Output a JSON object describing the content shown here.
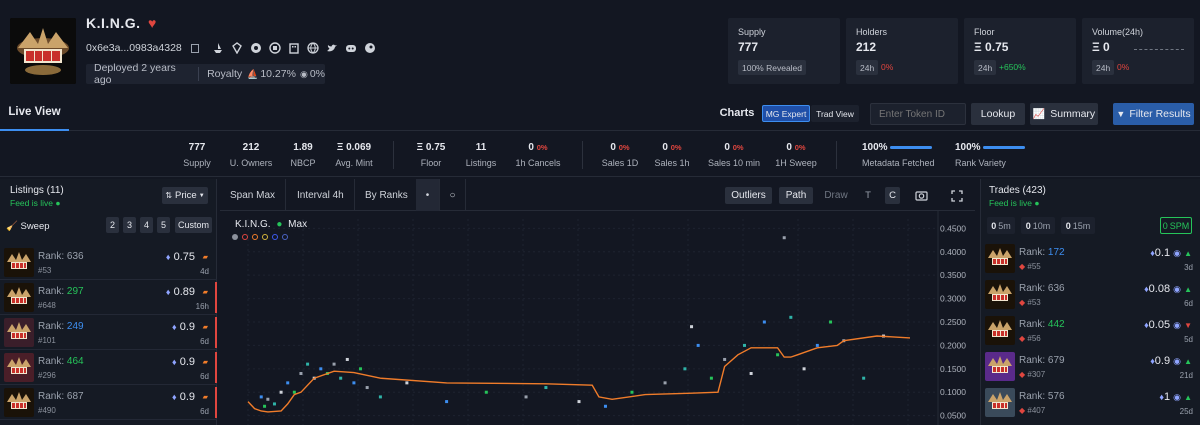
{
  "collection": {
    "name": "K.I.N.G.",
    "address": "0x6e3a...0983a4328",
    "deployed": "Deployed 2 years ago",
    "royalty_label": "Royalty",
    "royalty_value": "10.27%",
    "royalty_value2": "0%"
  },
  "stats_cards": [
    {
      "label": "Supply",
      "value": "777",
      "sub": "100% Revealed"
    },
    {
      "label": "Holders",
      "value": "212",
      "period": "24h",
      "change": "0%"
    },
    {
      "label": "Floor",
      "value": "Ξ 0.75",
      "period": "24h",
      "change": "+650%"
    },
    {
      "label": "Volume(24h)",
      "value": "Ξ 0",
      "period": "24h",
      "change": "0%"
    }
  ],
  "tabs": {
    "live_view": "Live View",
    "charts": "Charts",
    "mg_expert": "MG Expert",
    "trad_view": "Trad View"
  },
  "search": {
    "placeholder": "Enter Token ID",
    "lookup": "Lookup",
    "summary": "Summary",
    "filter": "Filter Results"
  },
  "stats_bar": [
    {
      "value": "777",
      "label": "Supply"
    },
    {
      "value": "212",
      "label": "U. Owners"
    },
    {
      "value": "1.89",
      "label": "NBCP"
    },
    {
      "value": "Ξ 0.069",
      "label": "Avg. Mint"
    },
    {
      "value": "Ξ 0.75",
      "label": "Floor"
    },
    {
      "value": "11",
      "label": "Listings"
    },
    {
      "value": "0",
      "badge": "0%",
      "label": "1h Cancels"
    },
    {
      "value": "0",
      "badge": "0%",
      "label": "Sales 1D"
    },
    {
      "value": "0",
      "badge": "0%",
      "label": "Sales 1h"
    },
    {
      "value": "0",
      "badge": "0%",
      "label": "Sales 10 min"
    },
    {
      "value": "0",
      "badge": "0%",
      "label": "1H Sweep"
    },
    {
      "value": "100%",
      "label": "Metadata Fetched",
      "progress": 1.0
    },
    {
      "value": "100%",
      "label": "Rank Variety",
      "progress": 1.0
    }
  ],
  "listings": {
    "title": "Listings (11)",
    "feed_status": "Feed is live",
    "sort_label": "Price",
    "sweep_label": "Sweep",
    "sweep_options": [
      "2",
      "3",
      "4",
      "5",
      "Custom"
    ],
    "rank_prefix": "Rank:",
    "items": [
      {
        "rank": "636",
        "rank_color": "#9aa1ad",
        "id": "#53",
        "price": "0.75",
        "age": "4d"
      },
      {
        "rank": "297",
        "rank_color": "#26c45a",
        "id": "#648",
        "price": "0.89",
        "age": "16h"
      },
      {
        "rank": "249",
        "rank_color": "#3d8ef0",
        "id": "#101",
        "price": "0.9",
        "age": "6d"
      },
      {
        "rank": "464",
        "rank_color": "#26c45a",
        "id": "#296",
        "price": "0.9",
        "age": "6d"
      },
      {
        "rank": "687",
        "rank_color": "#9aa1ad",
        "id": "#490",
        "price": "0.9",
        "age": "6d"
      }
    ]
  },
  "chart_toolbar": {
    "span": "Span Max",
    "interval": "Interval 4h",
    "mode": "By Ranks",
    "outliers": "Outliers",
    "path": "Path",
    "draw": "Draw",
    "t": "T",
    "c": "C"
  },
  "chart_legend": {
    "name": "K.I.N.G.",
    "max": "Max"
  },
  "chart_data": {
    "type": "scatter",
    "yticks": [
      "0.4500",
      "0.4000",
      "0.3500",
      "0.3000",
      "0.2500",
      "0.2000",
      "0.1500",
      "0.1000",
      "0.0500"
    ],
    "ylim": [
      0.03,
      0.47
    ],
    "floor_line": [
      [
        0,
        0.08
      ],
      [
        0.01,
        0.065
      ],
      [
        0.02,
        0.06
      ],
      [
        0.03,
        0.058
      ],
      [
        0.05,
        0.06
      ],
      [
        0.06,
        0.075
      ],
      [
        0.07,
        0.095
      ],
      [
        0.08,
        0.1
      ],
      [
        0.1,
        0.13
      ],
      [
        0.13,
        0.145
      ],
      [
        0.16,
        0.142
      ],
      [
        0.2,
        0.13
      ],
      [
        0.3,
        0.12
      ],
      [
        0.45,
        0.118
      ],
      [
        0.52,
        0.115
      ],
      [
        0.53,
        0.09
      ],
      [
        0.55,
        0.085
      ],
      [
        0.6,
        0.095
      ],
      [
        0.67,
        0.098
      ],
      [
        0.71,
        0.1
      ],
      [
        0.72,
        0.155
      ],
      [
        0.74,
        0.18
      ],
      [
        0.76,
        0.195
      ],
      [
        0.8,
        0.195
      ],
      [
        0.81,
        0.175
      ],
      [
        0.82,
        0.175
      ],
      [
        0.83,
        0.18
      ],
      [
        0.86,
        0.195
      ],
      [
        0.89,
        0.2
      ],
      [
        0.9,
        0.21
      ],
      [
        0.95,
        0.22
      ],
      [
        1.0,
        0.216
      ]
    ],
    "points": [
      [
        0.02,
        0.09
      ],
      [
        0.025,
        0.07
      ],
      [
        0.03,
        0.085
      ],
      [
        0.04,
        0.075
      ],
      [
        0.05,
        0.1
      ],
      [
        0.06,
        0.12
      ],
      [
        0.07,
        0.1
      ],
      [
        0.08,
        0.14
      ],
      [
        0.09,
        0.16
      ],
      [
        0.1,
        0.13
      ],
      [
        0.11,
        0.15
      ],
      [
        0.12,
        0.14
      ],
      [
        0.13,
        0.16
      ],
      [
        0.14,
        0.13
      ],
      [
        0.15,
        0.17
      ],
      [
        0.16,
        0.12
      ],
      [
        0.17,
        0.15
      ],
      [
        0.18,
        0.11
      ],
      [
        0.2,
        0.09
      ],
      [
        0.24,
        0.12
      ],
      [
        0.3,
        0.08
      ],
      [
        0.36,
        0.1
      ],
      [
        0.42,
        0.09
      ],
      [
        0.45,
        0.11
      ],
      [
        0.5,
        0.08
      ],
      [
        0.54,
        0.07
      ],
      [
        0.58,
        0.1
      ],
      [
        0.63,
        0.12
      ],
      [
        0.66,
        0.15
      ],
      [
        0.67,
        0.24
      ],
      [
        0.68,
        0.2
      ],
      [
        0.7,
        0.13
      ],
      [
        0.72,
        0.17
      ],
      [
        0.75,
        0.2
      ],
      [
        0.76,
        0.14
      ],
      [
        0.78,
        0.25
      ],
      [
        0.8,
        0.18
      ],
      [
        0.81,
        0.43
      ],
      [
        0.82,
        0.26
      ],
      [
        0.84,
        0.15
      ],
      [
        0.86,
        0.2
      ],
      [
        0.88,
        0.25
      ],
      [
        0.9,
        0.21
      ],
      [
        0.93,
        0.13
      ],
      [
        0.96,
        0.22
      ]
    ]
  },
  "trades": {
    "title": "Trades (423)",
    "feed_status": "Feed is live",
    "filters": [
      {
        "value": "0",
        "unit": "5m"
      },
      {
        "value": "0",
        "unit": "10m"
      },
      {
        "value": "0",
        "unit": "15m"
      }
    ],
    "spm": {
      "value": "0",
      "unit": "SPM"
    },
    "rank_prefix": "Rank:",
    "items": [
      {
        "rank": "172",
        "rank_color": "#3d8ef0",
        "id": "#55",
        "price": "0.1",
        "age": "3d",
        "dir": "up"
      },
      {
        "rank": "636",
        "rank_color": "#9aa1ad",
        "id": "#53",
        "price": "0.08",
        "age": "6d",
        "dir": "up"
      },
      {
        "rank": "442",
        "rank_color": "#26c45a",
        "id": "#56",
        "price": "0.05",
        "age": "5d",
        "dir": "down"
      },
      {
        "rank": "679",
        "rank_color": "#9aa1ad",
        "id": "#307",
        "price": "0.9",
        "age": "21d",
        "dir": "up"
      },
      {
        "rank": "576",
        "rank_color": "#9aa1ad",
        "id": "#407",
        "price": "1",
        "age": "25d",
        "dir": "up"
      }
    ]
  },
  "colors": {
    "accent": "#3d8ef0",
    "positive": "#26c45a",
    "negative": "#e0463f",
    "floor_line": "#f07c2a"
  }
}
